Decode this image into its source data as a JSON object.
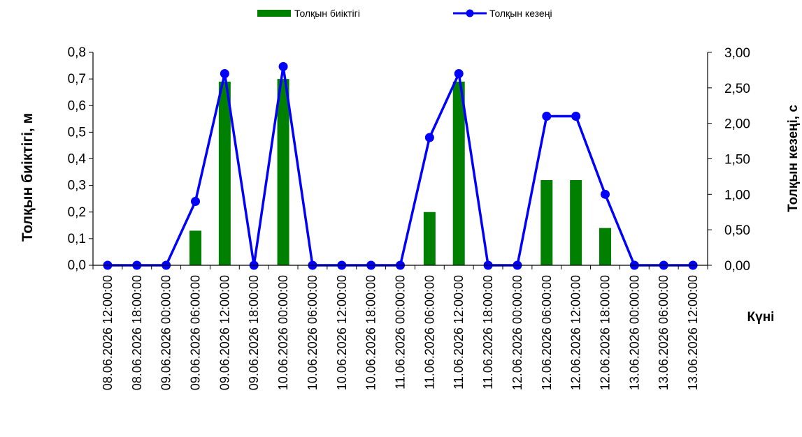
{
  "chart_data": {
    "type": "bar",
    "categories": [
      "08.06.2026 12:00:00",
      "08.06.2026 18:00:00",
      "09.06.2026 00:00:00",
      "09.06.2026 06:00:00",
      "09.06.2026 12:00:00",
      "09.06.2026 18:00:00",
      "10.06.2026 00:00:00",
      "10.06.2026 06:00:00",
      "10.06.2026 12:00:00",
      "10.06.2026 18:00:00",
      "11.06.2026 00:00:00",
      "11.06.2026 06:00:00",
      "11.06.2026 12:00:00",
      "11.06.2026 18:00:00",
      "12.06.2026 00:00:00",
      "12.06.2026 06:00:00",
      "12.06.2026 12:00:00",
      "12.06.2026 18:00:00",
      "13.06.2026 00:00:00",
      "13.06.2026 06:00:00",
      "13.06.2026 12:00:00"
    ],
    "series": [
      {
        "name": "Толқын биіктігі",
        "type": "bar",
        "axis": "left",
        "color": "#008000",
        "values": [
          0,
          0,
          0,
          0.13,
          0.69,
          0,
          0.7,
          0,
          0,
          0,
          0,
          0.2,
          0.69,
          0,
          0,
          0.32,
          0.32,
          0.14,
          0,
          0,
          0
        ]
      },
      {
        "name": "Толқын кезеңі",
        "type": "line",
        "axis": "right",
        "color": "#0000ff",
        "values": [
          0,
          0,
          0,
          0.9,
          2.7,
          0,
          2.8,
          0,
          0,
          0,
          0,
          1.8,
          2.7,
          0,
          0,
          2.1,
          2.1,
          1.0,
          0,
          0,
          0
        ]
      }
    ],
    "ylabel": "Толқын биіктігі, м",
    "y2label": "Толқын кезеңі, с",
    "xlabel": "Күні",
    "ylim": [
      0,
      0.8
    ],
    "y2lim": [
      0,
      3.0
    ],
    "yticks": [
      "0,0",
      "0,1",
      "0,2",
      "0,3",
      "0,4",
      "0,5",
      "0,6",
      "0,7",
      "0,8"
    ],
    "y2ticks": [
      "0,00",
      "0,50",
      "1,00",
      "1,50",
      "2,00",
      "2,50",
      "3,00"
    ],
    "grid": false,
    "legend": "top-center"
  }
}
